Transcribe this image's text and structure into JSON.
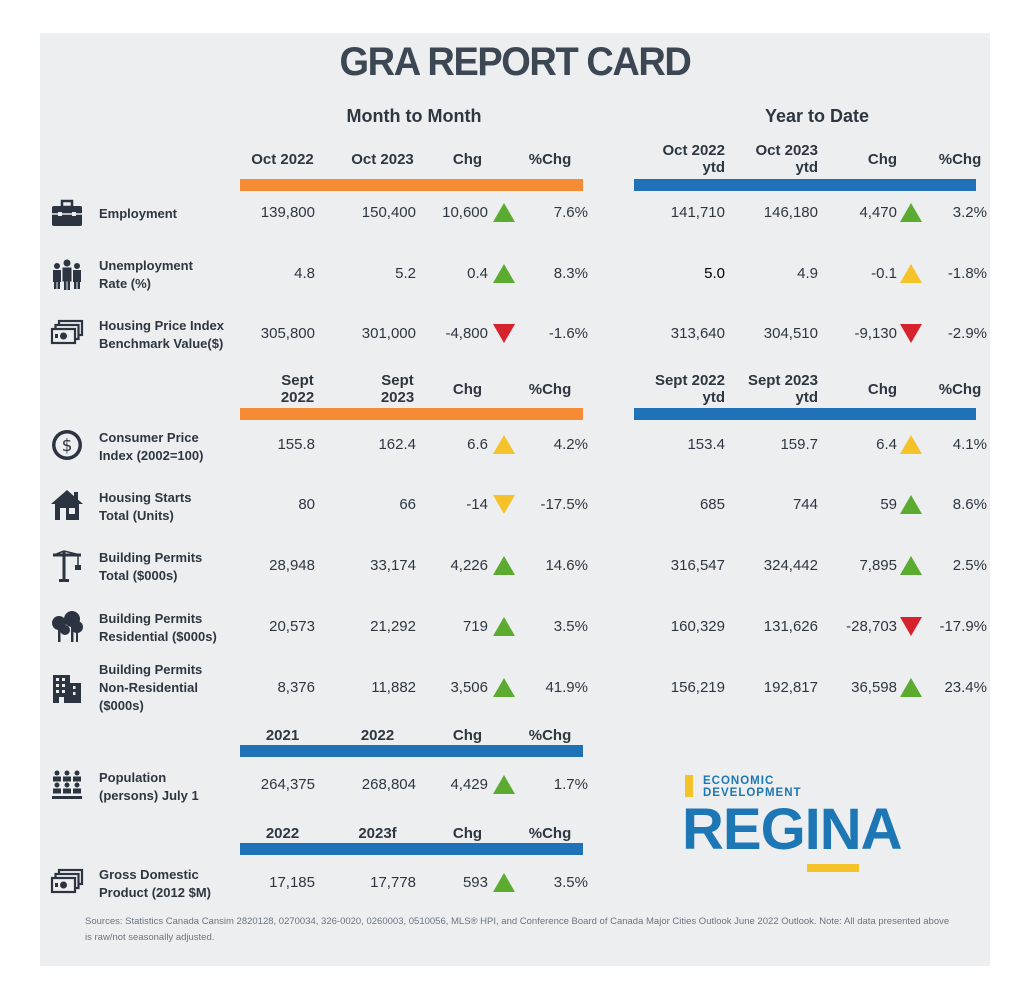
{
  "title": "GRA REPORT CARD",
  "sections": {
    "month_to_month": "Month to Month",
    "year_to_date": "Year to Date"
  },
  "headers": {
    "set1": {
      "c1": "Oct 2022",
      "c2": "Oct 2023",
      "c3": "Chg",
      "c4": "%Chg",
      "y1a": "Oct 2022",
      "y1b": "ytd",
      "y2a": "Oct 2023",
      "y2b": "ytd",
      "y3": "Chg",
      "y4": "%Chg"
    },
    "set2": {
      "c1a": "Sept",
      "c1b": "2022",
      "c2a": "Sept",
      "c2b": "2023",
      "c3": "Chg",
      "c4": "%Chg",
      "y1a": "Sept 2022",
      "y1b": "ytd",
      "y2a": "Sept 2023",
      "y2b": "ytd",
      "y3": "Chg",
      "y4": "%Chg"
    },
    "set3": {
      "c1": "2021",
      "c2": "2022",
      "c3": "Chg",
      "c4": "%Chg"
    },
    "set4": {
      "c1": "2022",
      "c2": "2023f",
      "c3": "Chg",
      "c4": "%Chg"
    }
  },
  "rows": [
    {
      "label1": "Employment",
      "label2": "",
      "label3": "",
      "icon": "briefcase-icon",
      "m1": "139,800",
      "m2": "150,400",
      "m3": "10,600",
      "m4": "7.6%",
      "mt": "up-green",
      "y1": "141,710",
      "y2": "146,180",
      "y3": "4,470",
      "y4": "3.2%",
      "yt": "up-green"
    },
    {
      "label1": "Unemployment",
      "label2": "Rate (%)",
      "label3": "",
      "icon": "people-icon",
      "m1": "4.8",
      "m2": "5.2",
      "m3": "0.4",
      "m4": "8.3%",
      "mt": "up-green",
      "y1": "5.0",
      "y2": "4.9",
      "y3": "-0.1",
      "y4": "-1.8%",
      "yt": "up-yellow"
    },
    {
      "label1": "Housing Price Index",
      "label2": "Benchmark Value($)",
      "label3": "",
      "icon": "money-icon",
      "m1": "305,800",
      "m2": "301,000",
      "m3": "-4,800",
      "m4": "-1.6%",
      "mt": "down-red",
      "y1": "313,640",
      "y2": "304,510",
      "y3": "-9,130",
      "y4": "-2.9%",
      "yt": "down-red"
    },
    {
      "label1": "Consumer Price",
      "label2": "Index (2002=100)",
      "label3": "",
      "icon": "dollar-coin-icon",
      "m1": "155.8",
      "m2": "162.4",
      "m3": "6.6",
      "m4": "4.2%",
      "mt": "up-yellow",
      "y1": "153.4",
      "y2": "159.7",
      "y3": "6.4",
      "y4": "4.1%",
      "yt": "up-yellow"
    },
    {
      "label1": "Housing Starts",
      "label2": "Total (Units)",
      "label3": "",
      "icon": "house-icon",
      "m1": "80",
      "m2": "66",
      "m3": "-14",
      "m4": "-17.5%",
      "mt": "down-yellow",
      "y1": "685",
      "y2": "744",
      "y3": "59",
      "y4": "8.6%",
      "yt": "up-green"
    },
    {
      "label1": "Building Permits",
      "label2": "Total ($000s)",
      "label3": "",
      "icon": "crane-icon",
      "m1": "28,948",
      "m2": "33,174",
      "m3": "4,226",
      "m4": "14.6%",
      "mt": "up-green",
      "y1": "316,547",
      "y2": "324,442",
      "y3": "7,895",
      "y4": "2.5%",
      "yt": "up-green"
    },
    {
      "label1": "Building Permits",
      "label2": "Residential ($000s)",
      "label3": "",
      "icon": "trees-icon",
      "m1": "20,573",
      "m2": "21,292",
      "m3": "719",
      "m4": "3.5%",
      "mt": "up-green",
      "y1": "160,329",
      "y2": "131,626",
      "y3": "-28,703",
      "y4": "-17.9%",
      "yt": "down-red"
    },
    {
      "label1": "Building Permits",
      "label2": "Non-Residential",
      "label3": "($000s)",
      "icon": "office-building-icon",
      "m1": "8,376",
      "m2": "11,882",
      "m3": "3,506",
      "m4": "41.9%",
      "mt": "up-green",
      "y1": "156,219",
      "y2": "192,817",
      "y3": "36,598",
      "y4": "23.4%",
      "yt": "up-green"
    },
    {
      "label1": "Population",
      "label2": "(persons) July 1",
      "label3": "",
      "icon": "population-icon",
      "m1": "264,375",
      "m2": "268,804",
      "m3": "4,429",
      "m4": "1.7%",
      "mt": "up-green"
    },
    {
      "label1": "Gross Domestic",
      "label2": "Product (2012 $M)",
      "label3": "",
      "icon": "money-icon",
      "m1": "17,185",
      "m2": "17,778",
      "m3": "593",
      "m4": "3.5%",
      "mt": "up-green"
    }
  ],
  "logo": {
    "line1": "ECONOMIC",
    "line2": "DEVELOPMENT",
    "word": "REGINA"
  },
  "footer": "Sources: Statistics Canada Cansim 2820128, 0270034, 326-0020, 0260003, 0510056, MLS® HPI, and Conference Board of Canada Major Cities Outlook June 2022 Outlook. Note: All data presented above is raw/not seasonally adjusted.",
  "colors": {
    "orange": "#f58b35",
    "blue": "#1f71b8",
    "green": "#5aab2f",
    "yellow": "#f6c22a",
    "red": "#d5222d"
  }
}
